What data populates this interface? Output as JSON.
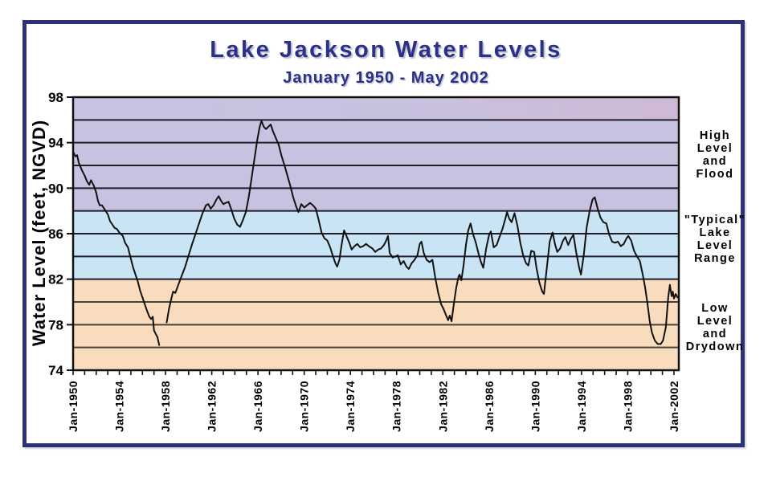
{
  "page": {
    "title": "Lake Jackson Water Levels",
    "subtitle": "January 1950 - May 2002"
  },
  "chart_data": {
    "type": "line",
    "title": "Lake Jackson Water Levels",
    "subtitle": "January 1950 - May 2002",
    "xlabel": "",
    "ylabel": "Water Level (feet, NGVD)",
    "x_min": 1950.0,
    "x_max": 2002.42,
    "y_min": 74,
    "y_max": 98,
    "grid_step": 2,
    "grid_on": true,
    "legend": "none",
    "y_ticks": [
      74,
      78,
      82,
      86,
      90,
      94,
      98
    ],
    "x_tick_minor_start": 1950,
    "x_tick_minor_end": 2002,
    "x_ticks_major": [
      {
        "year": 1950,
        "label": "Jan-1950"
      },
      {
        "year": 1954,
        "label": "Jan-1954"
      },
      {
        "year": 1958,
        "label": "Jan-1958"
      },
      {
        "year": 1962,
        "label": "Jan-1962"
      },
      {
        "year": 1966,
        "label": "Jan-1966"
      },
      {
        "year": 1970,
        "label": "Jan-1970"
      },
      {
        "year": 1974,
        "label": "Jan-1974"
      },
      {
        "year": 1978,
        "label": "Jan-1978"
      },
      {
        "year": 1982,
        "label": "Jan-1982"
      },
      {
        "year": 1986,
        "label": "Jan-1986"
      },
      {
        "year": 1990,
        "label": "Jan-1990"
      },
      {
        "year": 1994,
        "label": "Jan-1994"
      },
      {
        "year": 1998,
        "label": "Jan-1998"
      },
      {
        "year": 2002,
        "label": "Jan-2002"
      }
    ],
    "bands": [
      {
        "name": "high-level-flood",
        "from": 88,
        "to": 98,
        "color": "#c7c2e0",
        "label": "High\nLevel\nand\nFlood"
      },
      {
        "name": "typical-lake-level-range",
        "from": 82,
        "to": 88,
        "color": "#c9e5f5",
        "label": "\"Typical\"\nLake\nLevel\nRange"
      },
      {
        "name": "low-level-drydown",
        "from": 74,
        "to": 82,
        "color": "#f8dcbd",
        "label": "Low\nLevel\nand\nDrydown"
      }
    ],
    "colors": {
      "line": "#111111",
      "grid": "#1f1e2a",
      "grid_low": "#4a3f35",
      "axis": "#111111",
      "frame": "#2c3277",
      "title_text": "#2b3186",
      "top_tint": "#d9aec6"
    },
    "series": [
      {
        "name": "water-level",
        "note": "feet NGVD, monthly trace; gap in record ~1957-1958",
        "segments": [
          [
            [
              1950.0,
              93.2
            ],
            [
              1950.2,
              92.8
            ],
            [
              1950.35,
              92.9
            ],
            [
              1950.5,
              92.2
            ],
            [
              1950.75,
              91.6
            ],
            [
              1951.0,
              91.1
            ],
            [
              1951.2,
              90.6
            ],
            [
              1951.4,
              90.3
            ],
            [
              1951.55,
              90.7
            ],
            [
              1951.8,
              90.2
            ],
            [
              1952.0,
              89.6
            ],
            [
              1952.15,
              88.9
            ],
            [
              1952.3,
              88.5
            ],
            [
              1952.5,
              88.5
            ],
            [
              1952.75,
              88.1
            ],
            [
              1953.0,
              87.7
            ],
            [
              1953.2,
              87.1
            ],
            [
              1953.4,
              86.8
            ],
            [
              1953.6,
              86.5
            ],
            [
              1953.8,
              86.4
            ],
            [
              1954.0,
              86.1
            ],
            [
              1954.3,
              85.8
            ],
            [
              1954.5,
              85.2
            ],
            [
              1954.75,
              84.8
            ],
            [
              1955.0,
              83.8
            ],
            [
              1955.2,
              83.0
            ],
            [
              1955.4,
              82.4
            ],
            [
              1955.6,
              81.8
            ],
            [
              1955.8,
              81.0
            ],
            [
              1956.0,
              80.4
            ],
            [
              1956.2,
              79.8
            ],
            [
              1956.4,
              79.2
            ],
            [
              1956.6,
              78.7
            ],
            [
              1956.75,
              78.5
            ],
            [
              1956.9,
              78.7
            ],
            [
              1957.0,
              77.5
            ],
            [
              1957.15,
              77.2
            ],
            [
              1957.3,
              76.9
            ],
            [
              1957.45,
              76.2
            ]
          ],
          [
            [
              1958.1,
              78.2
            ],
            [
              1958.3,
              79.4
            ],
            [
              1958.5,
              80.3
            ],
            [
              1958.65,
              80.9
            ],
            [
              1958.85,
              80.8
            ],
            [
              1959.1,
              81.5
            ],
            [
              1959.4,
              82.3
            ],
            [
              1959.7,
              83.1
            ],
            [
              1960.0,
              84.1
            ],
            [
              1960.3,
              85.1
            ],
            [
              1960.6,
              86.0
            ],
            [
              1960.9,
              86.9
            ],
            [
              1961.2,
              87.8
            ],
            [
              1961.5,
              88.5
            ],
            [
              1961.7,
              88.6
            ],
            [
              1961.9,
              88.2
            ],
            [
              1962.15,
              88.5
            ],
            [
              1962.4,
              89.0
            ],
            [
              1962.6,
              89.3
            ],
            [
              1962.8,
              88.9
            ],
            [
              1963.0,
              88.6
            ],
            [
              1963.2,
              88.7
            ],
            [
              1963.45,
              88.8
            ],
            [
              1963.7,
              88.1
            ],
            [
              1963.95,
              87.3
            ],
            [
              1964.2,
              86.8
            ],
            [
              1964.45,
              86.6
            ],
            [
              1964.7,
              87.2
            ],
            [
              1964.95,
              87.9
            ],
            [
              1965.2,
              89.2
            ],
            [
              1965.45,
              90.9
            ],
            [
              1965.7,
              92.6
            ],
            [
              1965.95,
              94.3
            ],
            [
              1966.15,
              95.4
            ],
            [
              1966.3,
              95.9
            ],
            [
              1966.5,
              95.4
            ],
            [
              1966.7,
              95.2
            ],
            [
              1966.9,
              95.4
            ],
            [
              1967.1,
              95.6
            ],
            [
              1967.3,
              95.0
            ],
            [
              1967.55,
              94.4
            ],
            [
              1967.8,
              93.8
            ],
            [
              1968.05,
              92.8
            ],
            [
              1968.3,
              92.0
            ],
            [
              1968.55,
              91.1
            ],
            [
              1968.8,
              90.2
            ],
            [
              1969.05,
              89.2
            ],
            [
              1969.3,
              88.4
            ],
            [
              1969.5,
              87.9
            ],
            [
              1969.75,
              88.6
            ],
            [
              1970.0,
              88.3
            ],
            [
              1970.25,
              88.5
            ],
            [
              1970.5,
              88.7
            ],
            [
              1970.75,
              88.5
            ],
            [
              1971.0,
              88.2
            ],
            [
              1971.25,
              87.2
            ],
            [
              1971.5,
              86.1
            ],
            [
              1971.75,
              85.6
            ],
            [
              1972.0,
              85.4
            ],
            [
              1972.25,
              84.8
            ],
            [
              1972.5,
              84.0
            ],
            [
              1972.7,
              83.4
            ],
            [
              1972.85,
              83.1
            ],
            [
              1973.05,
              83.7
            ],
            [
              1973.25,
              85.1
            ],
            [
              1973.45,
              86.3
            ],
            [
              1973.65,
              85.8
            ],
            [
              1973.9,
              85.2
            ],
            [
              1974.1,
              84.6
            ],
            [
              1974.35,
              84.9
            ],
            [
              1974.6,
              85.1
            ],
            [
              1974.85,
              84.8
            ],
            [
              1975.1,
              84.9
            ],
            [
              1975.35,
              85.1
            ],
            [
              1975.6,
              84.9
            ],
            [
              1975.9,
              84.7
            ],
            [
              1976.15,
              84.4
            ],
            [
              1976.4,
              84.6
            ],
            [
              1976.65,
              84.7
            ],
            [
              1976.9,
              85.0
            ],
            [
              1977.1,
              85.4
            ],
            [
              1977.25,
              85.8
            ],
            [
              1977.4,
              84.3
            ],
            [
              1977.65,
              83.9
            ],
            [
              1977.9,
              84.0
            ],
            [
              1978.1,
              84.1
            ],
            [
              1978.35,
              83.3
            ],
            [
              1978.6,
              83.6
            ],
            [
              1978.85,
              83.1
            ],
            [
              1979.05,
              82.9
            ],
            [
              1979.3,
              83.4
            ],
            [
              1979.55,
              83.7
            ],
            [
              1979.8,
              84.1
            ],
            [
              1980.0,
              85.1
            ],
            [
              1980.15,
              85.3
            ],
            [
              1980.35,
              84.3
            ],
            [
              1980.6,
              83.7
            ],
            [
              1980.85,
              83.5
            ],
            [
              1981.1,
              83.7
            ],
            [
              1981.35,
              82.1
            ],
            [
              1981.6,
              80.8
            ],
            [
              1981.85,
              79.8
            ],
            [
              1982.05,
              79.4
            ],
            [
              1982.25,
              78.9
            ],
            [
              1982.45,
              78.4
            ],
            [
              1982.6,
              78.8
            ],
            [
              1982.75,
              78.3
            ],
            [
              1982.95,
              79.8
            ],
            [
              1983.15,
              81.2
            ],
            [
              1983.35,
              82.2
            ],
            [
              1983.45,
              82.4
            ],
            [
              1983.6,
              81.9
            ],
            [
              1983.8,
              83.3
            ],
            [
              1984.0,
              85.0
            ],
            [
              1984.2,
              86.3
            ],
            [
              1984.4,
              86.9
            ],
            [
              1984.6,
              86.0
            ],
            [
              1984.85,
              85.2
            ],
            [
              1985.1,
              84.2
            ],
            [
              1985.3,
              83.5
            ],
            [
              1985.5,
              83.0
            ],
            [
              1985.75,
              84.7
            ],
            [
              1986.0,
              85.9
            ],
            [
              1986.15,
              86.2
            ],
            [
              1986.4,
              84.8
            ],
            [
              1986.65,
              85.0
            ],
            [
              1986.9,
              85.7
            ],
            [
              1987.15,
              86.4
            ],
            [
              1987.4,
              87.3
            ],
            [
              1987.55,
              87.9
            ],
            [
              1987.75,
              87.3
            ],
            [
              1987.95,
              87.0
            ],
            [
              1988.2,
              87.8
            ],
            [
              1988.45,
              86.7
            ],
            [
              1988.7,
              85.2
            ],
            [
              1988.95,
              84.1
            ],
            [
              1989.2,
              83.4
            ],
            [
              1989.4,
              83.2
            ],
            [
              1989.65,
              84.5
            ],
            [
              1989.9,
              84.4
            ],
            [
              1990.1,
              83.0
            ],
            [
              1990.35,
              81.7
            ],
            [
              1990.6,
              80.9
            ],
            [
              1990.75,
              80.7
            ],
            [
              1991.0,
              83.0
            ],
            [
              1991.25,
              85.3
            ],
            [
              1991.5,
              86.1
            ],
            [
              1991.7,
              85.1
            ],
            [
              1991.9,
              84.4
            ],
            [
              1992.15,
              84.7
            ],
            [
              1992.4,
              85.4
            ],
            [
              1992.6,
              85.7
            ],
            [
              1992.85,
              85.0
            ],
            [
              1993.1,
              85.6
            ],
            [
              1993.3,
              85.9
            ],
            [
              1993.55,
              84.3
            ],
            [
              1993.8,
              83.0
            ],
            [
              1993.95,
              82.4
            ],
            [
              1994.2,
              84.2
            ],
            [
              1994.45,
              86.6
            ],
            [
              1994.7,
              88.0
            ],
            [
              1994.95,
              89.0
            ],
            [
              1995.15,
              89.2
            ],
            [
              1995.4,
              88.2
            ],
            [
              1995.65,
              87.4
            ],
            [
              1995.9,
              87.0
            ],
            [
              1996.15,
              86.9
            ],
            [
              1996.4,
              85.9
            ],
            [
              1996.65,
              85.3
            ],
            [
              1996.9,
              85.2
            ],
            [
              1997.15,
              85.3
            ],
            [
              1997.4,
              84.9
            ],
            [
              1997.65,
              85.1
            ],
            [
              1997.9,
              85.6
            ],
            [
              1998.05,
              85.8
            ],
            [
              1998.3,
              85.4
            ],
            [
              1998.55,
              84.5
            ],
            [
              1998.8,
              84.0
            ],
            [
              1999.05,
              83.6
            ],
            [
              1999.3,
              82.4
            ],
            [
              1999.5,
              81.3
            ],
            [
              1999.7,
              79.9
            ],
            [
              1999.9,
              78.3
            ],
            [
              2000.1,
              77.3
            ],
            [
              2000.35,
              76.6
            ],
            [
              2000.6,
              76.3
            ],
            [
              2000.85,
              76.3
            ],
            [
              2001.05,
              76.6
            ],
            [
              2001.3,
              77.8
            ],
            [
              2001.5,
              80.4
            ],
            [
              2001.65,
              81.5
            ],
            [
              2001.8,
              80.5
            ],
            [
              2001.9,
              80.9
            ],
            [
              2002.0,
              80.3
            ],
            [
              2002.15,
              80.7
            ],
            [
              2002.3,
              80.4
            ]
          ]
        ]
      }
    ]
  }
}
